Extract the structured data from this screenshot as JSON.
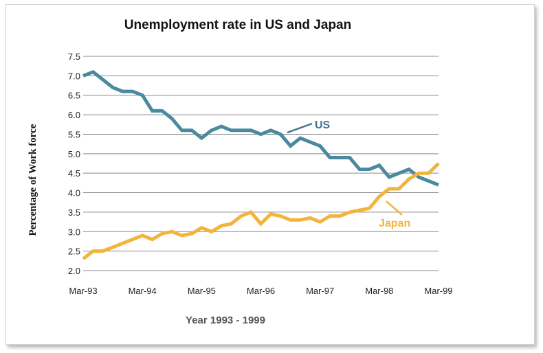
{
  "chart_data": {
    "type": "line",
    "title": "Unemployment rate in US and Japan",
    "xlabel": "Year 1993 - 1999",
    "ylabel": "Percentage of Work force",
    "ylim": [
      2.0,
      7.5
    ],
    "yticks": [
      "7.5",
      "7.0",
      "6.5",
      "6.0",
      "5.5",
      "5.0",
      "4.5",
      "4.0",
      "3.5",
      "3.0",
      "2.5",
      "2.0"
    ],
    "xticks": [
      "Mar-93",
      "Mar-94",
      "Mar-95",
      "Mar-96",
      "Mar-97",
      "Mar-98",
      "Mar-99"
    ],
    "grid": true,
    "legend": "inline labels",
    "x": [
      "Mar-93",
      "May-93",
      "Jul-93",
      "Sep-93",
      "Nov-93",
      "Jan-94",
      "Mar-94",
      "May-94",
      "Jul-94",
      "Sep-94",
      "Nov-94",
      "Jan-95",
      "Mar-95",
      "May-95",
      "Jul-95",
      "Sep-95",
      "Nov-95",
      "Jan-96",
      "Mar-96",
      "May-96",
      "Jul-96",
      "Sep-96",
      "Nov-96",
      "Jan-97",
      "Mar-97",
      "May-97",
      "Jul-97",
      "Sep-97",
      "Nov-97",
      "Jan-98",
      "Mar-98",
      "May-98",
      "Jul-98",
      "Sep-98",
      "Nov-98",
      "Jan-99",
      "Mar-99"
    ],
    "series": [
      {
        "name": "US",
        "color": "#4a8a9f",
        "values": [
          7.0,
          7.1,
          6.9,
          6.7,
          6.6,
          6.6,
          6.5,
          6.1,
          6.1,
          5.9,
          5.6,
          5.6,
          5.4,
          5.6,
          5.7,
          5.6,
          5.6,
          5.6,
          5.5,
          5.6,
          5.5,
          5.2,
          5.4,
          5.3,
          5.2,
          4.9,
          4.9,
          4.9,
          4.6,
          4.6,
          4.7,
          4.4,
          4.5,
          4.6,
          4.4,
          4.3,
          4.2
        ]
      },
      {
        "name": "Japan",
        "color": "#f3b43c",
        "values": [
          2.3,
          2.5,
          2.5,
          2.6,
          2.7,
          2.8,
          2.9,
          2.8,
          2.95,
          3.0,
          2.9,
          2.95,
          3.1,
          3.0,
          3.15,
          3.2,
          3.4,
          3.5,
          3.2,
          3.45,
          3.4,
          3.3,
          3.3,
          3.35,
          3.25,
          3.4,
          3.4,
          3.5,
          3.55,
          3.6,
          3.9,
          4.1,
          4.1,
          4.35,
          4.5,
          4.5,
          4.75
        ]
      }
    ],
    "annotations": [
      {
        "series": "US",
        "text": "US",
        "color": "#46708e"
      },
      {
        "series": "Japan",
        "text": "Japan",
        "color": "#f3b43c"
      }
    ]
  }
}
